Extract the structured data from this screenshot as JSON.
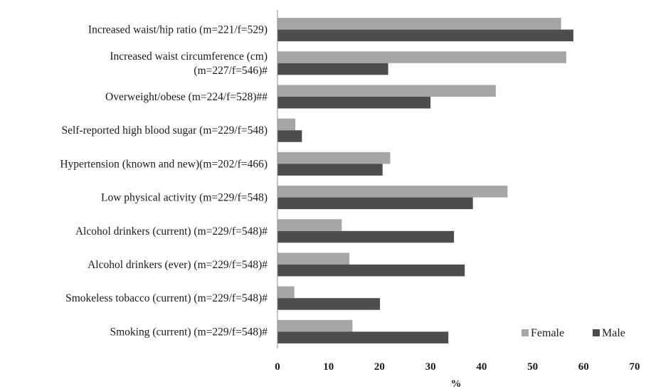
{
  "chart_data": {
    "type": "bar",
    "orientation": "horizontal",
    "categories": [
      [
        "Increased waist/hip ratio (m=221/f=529)"
      ],
      [
        "Increased waist circumference (cm)",
        "(m=227/f=546)#"
      ],
      [
        "Overweight/obese (m=224/f=528)##"
      ],
      [
        "Self-reported high blood sugar (m=229/f=548)"
      ],
      [
        "Hypertension (known and new)(m=202/f=466)"
      ],
      [
        "Low physical activity (m=229/f=548)"
      ],
      [
        "Alcohol drinkers (current) (m=229/f=548)#"
      ],
      [
        "Alcohol drinkers (ever) (m=229/f=548)#"
      ],
      [
        "Smokeless tobacco (current) (m=229/f=548)#"
      ],
      [
        "Smoking (current) (m=229/f=548)#"
      ]
    ],
    "series": [
      {
        "name": "Female",
        "color": "#a6a6a6",
        "values": [
          55.6,
          56.6,
          42.8,
          3.5,
          22.1,
          45.1,
          12.6,
          14.1,
          3.3,
          14.7
        ]
      },
      {
        "name": "Male",
        "color": "#4d4d4d",
        "values": [
          58.0,
          21.7,
          30.0,
          4.8,
          20.6,
          38.3,
          34.6,
          36.7,
          20.1,
          33.5
        ]
      }
    ],
    "xlabel": "%",
    "ylabel": "",
    "xlim": [
      0,
      70
    ],
    "xticks": [
      "0",
      "10",
      "20",
      "30",
      "40",
      "50",
      "60",
      "70"
    ],
    "grid": false,
    "legend_position": "bottom-right"
  }
}
